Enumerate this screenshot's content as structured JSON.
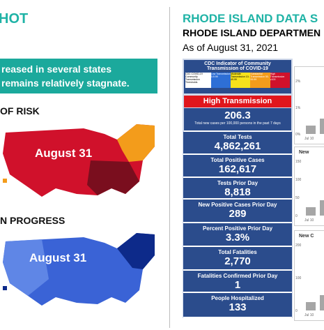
{
  "left": {
    "title": "HOT",
    "banner": [
      "reased in several states",
      "remains relatively stagnate."
    ],
    "section1": {
      "title": "OF RISK",
      "map_label": "August 31"
    },
    "section2": {
      "title": "N PROGRESS",
      "map_label": "August 31"
    }
  },
  "header": {
    "title": "RHODE ISLAND DATA S",
    "subtitle": "RHODE ISLAND DEPARTMEN",
    "date": "As of August 31, 2021"
  },
  "dashboard": {
    "cdc_title": "CDC Indicator of Community Transmission of COVID-19",
    "legend": [
      "CDC COVID-19 Community Transmission Thresholds",
      "Low Transmission 0-9.99",
      "Moderate Transmission 10-49.99",
      "Substantial Transmission 50-99.99",
      "High Transmission ≥100"
    ],
    "level": "High Transmission",
    "rate": "206.3",
    "rate_note": "Total new cases per 100,000 persons in the past 7 days",
    "tiles": [
      {
        "label": "Total Tests",
        "value": "4,862,261"
      },
      {
        "label": "Total Positive Cases",
        "value": "162,617"
      },
      {
        "label": "Tests Prior Day",
        "value": "8,818"
      },
      {
        "label": "New Positive Cases Prior Day",
        "value": "289"
      },
      {
        "label": "Percent Positive Prior Day",
        "value": "3.3%"
      },
      {
        "label": "Total Fatalities",
        "value": "2,770"
      },
      {
        "label": "Fatalities Confirmed Prior Day",
        "value": "1"
      },
      {
        "label": "People Hospitalized",
        "value": "133"
      }
    ]
  },
  "side_charts": [
    {
      "title": "",
      "ticks": [
        "2%",
        "1%",
        "0%"
      ],
      "x_label": "Jul 10"
    },
    {
      "title": "New",
      "ticks": [
        "150",
        "100",
        "50",
        "0"
      ],
      "x_label": "Jul 10"
    },
    {
      "title": "New C",
      "ticks": [
        "200",
        "100",
        "0"
      ],
      "x_label": "Jul 10"
    }
  ]
}
